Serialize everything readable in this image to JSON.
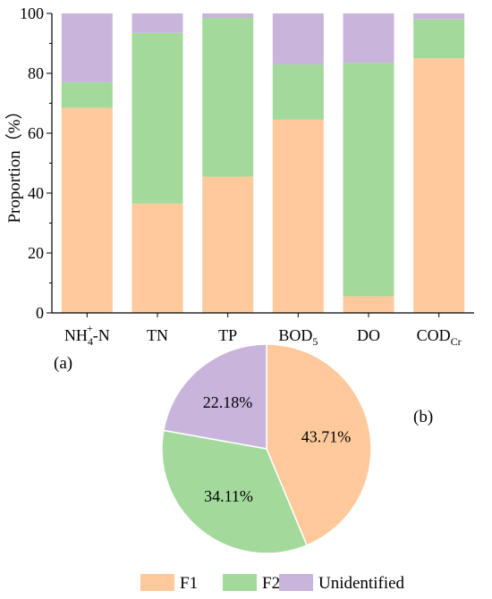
{
  "chart_data": [
    {
      "type": "bar",
      "stacked": true,
      "panel_label": "(a)",
      "categories": [
        {
          "base": "NH",
          "sub": "4",
          "sup": "+",
          "suffix": "-N"
        },
        {
          "base": "TN",
          "sub": "",
          "sup": "",
          "suffix": ""
        },
        {
          "base": "TP",
          "sub": "",
          "sup": "",
          "suffix": ""
        },
        {
          "base": "BOD",
          "sub": "5",
          "sup": "",
          "suffix": ""
        },
        {
          "base": "DO",
          "sub": "",
          "sup": "",
          "suffix": ""
        },
        {
          "base": "COD",
          "sub": "Cr",
          "sup": "",
          "suffix": ""
        }
      ],
      "series": [
        {
          "name": "F1",
          "color": "#FFC99B",
          "values": [
            68.5,
            36.5,
            45.5,
            64.5,
            5.5,
            85.0
          ]
        },
        {
          "name": "F2",
          "color": "#A3DA9C",
          "values": [
            8.5,
            57.0,
            53.0,
            18.5,
            78.0,
            13.0
          ]
        },
        {
          "name": "Unidentified",
          "color": "#C9B5DC",
          "values": [
            23.0,
            6.5,
            1.5,
            17.0,
            16.5,
            2.0
          ]
        }
      ],
      "ylabel": "Proportion（%）",
      "ylim": [
        0,
        100
      ],
      "yticks": [
        0,
        20,
        40,
        60,
        80,
        100
      ],
      "grid": false
    },
    {
      "type": "pie",
      "panel_label": "(b)",
      "slices": [
        {
          "name": "F1",
          "value": 43.71,
          "label": "43.71%",
          "color": "#FFC99B"
        },
        {
          "name": "F2",
          "value": 34.11,
          "label": "34.11%",
          "color": "#A3DA9C"
        },
        {
          "name": "Unidentified",
          "value": 22.18,
          "label": "22.18%",
          "color": "#C9B5DC"
        }
      ],
      "start": "12 o'clock",
      "direction": "clockwise"
    }
  ],
  "legend": {
    "placement": "bottom",
    "entries": [
      {
        "name": "F1",
        "color": "#FFC99B"
      },
      {
        "name": "F2",
        "color": "#A3DA9C"
      },
      {
        "name": "Unidentified",
        "color": "#C9B5DC"
      }
    ]
  }
}
